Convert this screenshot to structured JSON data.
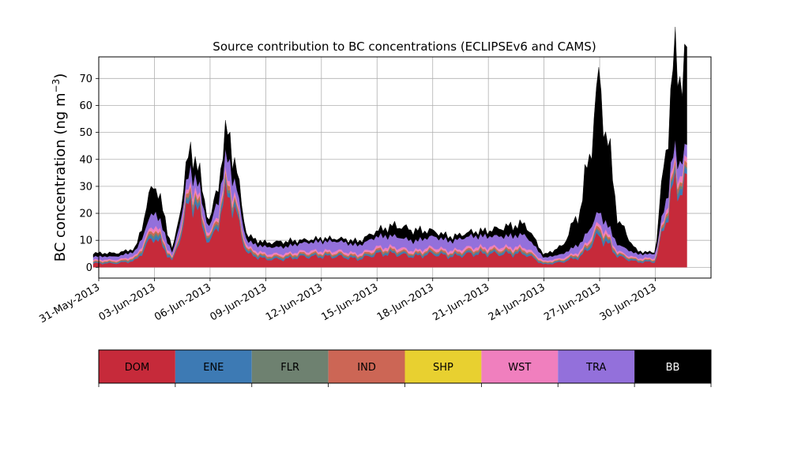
{
  "chart_data": {
    "type": "area",
    "stacked": true,
    "title": "Source contribution to BC concentrations (ECLIPSEv6 and CAMS)",
    "ylabel": "BC concentration (ng m",
    "ylabel_sup": "−3",
    "ylabel_close": ")",
    "xlabel": "",
    "grid": true,
    "x_dates": [
      "2013-06-01",
      "2013-06-02",
      "2013-06-03",
      "2013-06-04",
      "2013-06-05",
      "2013-06-06",
      "2013-06-07",
      "2013-06-08",
      "2013-06-09",
      "2013-06-10",
      "2013-06-11",
      "2013-06-12",
      "2013-06-13",
      "2013-06-14",
      "2013-06-15",
      "2013-06-16",
      "2013-06-17",
      "2013-06-18",
      "2013-06-19",
      "2013-06-20",
      "2013-06-21",
      "2013-06-22",
      "2013-06-23",
      "2013-06-24",
      "2013-06-25",
      "2013-06-26",
      "2013-06-27",
      "2013-06-28",
      "2013-06-29",
      "2013-06-30",
      "2013-07-01"
    ],
    "xlim": [
      "2013-05-31",
      "2013-07-03"
    ],
    "ylim": [
      -4,
      78
    ],
    "x_ticks": [
      "2013-05-31",
      "2013-06-03",
      "2013-06-06",
      "2013-06-09",
      "2013-06-12",
      "2013-06-15",
      "2013-06-18",
      "2013-06-21",
      "2013-06-24",
      "2013-06-27",
      "2013-06-30"
    ],
    "x_tick_labels": [
      "31-May-2013",
      "03-Jun-2013",
      "06-Jun-2013",
      "09-Jun-2013",
      "12-Jun-2013",
      "15-Jun-2013",
      "18-Jun-2013",
      "21-Jun-2013",
      "24-Jun-2013",
      "27-Jun-2013",
      "30-Jun-2013"
    ],
    "y_ticks": [
      0,
      10,
      20,
      30,
      40,
      50,
      60,
      70
    ],
    "series": [
      {
        "name": "DOM",
        "color": "#c62a3a",
        "values": [
          1.5,
          2.5,
          12,
          2,
          27,
          8,
          29,
          5,
          3,
          3,
          4,
          4,
          4,
          3,
          5,
          5,
          4,
          5,
          4,
          5,
          5,
          5,
          5,
          1,
          2,
          4,
          12,
          4,
          2,
          2,
          30
        ]
      },
      {
        "name": "ENE",
        "color": "#3d7ab4",
        "values": [
          0.3,
          0.4,
          1.5,
          0.4,
          2,
          1,
          1.8,
          0.6,
          0.5,
          0.5,
          0.5,
          0.5,
          0.5,
          0.5,
          0.6,
          0.6,
          0.5,
          0.6,
          0.5,
          0.6,
          0.6,
          0.6,
          0.6,
          0.3,
          0.4,
          0.5,
          1.5,
          0.5,
          0.4,
          0.4,
          2
        ]
      },
      {
        "name": "FLR",
        "color": "#6e8170",
        "values": [
          0.2,
          0.3,
          0.8,
          0.2,
          1,
          0.5,
          1,
          0.4,
          0.3,
          0.3,
          0.3,
          0.3,
          0.3,
          0.3,
          0.4,
          0.4,
          0.3,
          0.4,
          0.3,
          0.4,
          0.4,
          0.4,
          0.4,
          0.2,
          0.2,
          0.3,
          0.7,
          0.3,
          0.2,
          0.2,
          1
        ]
      },
      {
        "name": "IND",
        "color": "#cc6655",
        "values": [
          0.3,
          0.4,
          1,
          0.3,
          1.5,
          0.7,
          1.5,
          0.6,
          0.5,
          0.5,
          0.5,
          0.5,
          0.5,
          0.5,
          0.6,
          0.6,
          0.5,
          0.6,
          0.5,
          0.6,
          0.6,
          0.6,
          0.6,
          0.3,
          0.3,
          0.5,
          1,
          0.4,
          0.3,
          0.3,
          1.5
        ]
      },
      {
        "name": "SHP",
        "color": "#e8d030",
        "values": [
          0.05,
          0.05,
          0.1,
          0.05,
          0.1,
          0.05,
          0.1,
          0.05,
          0.05,
          0.05,
          0.05,
          0.05,
          0.05,
          0.05,
          0.05,
          0.05,
          0.05,
          0.05,
          0.05,
          0.05,
          0.05,
          0.05,
          0.05,
          0.05,
          0.05,
          0.05,
          0.1,
          0.05,
          0.05,
          0.05,
          0.1
        ]
      },
      {
        "name": "WST",
        "color": "#f07fbe",
        "values": [
          0.5,
          0.6,
          1.5,
          0.5,
          2,
          0.8,
          2,
          0.8,
          0.7,
          0.7,
          0.7,
          0.8,
          0.8,
          0.7,
          0.9,
          0.9,
          0.8,
          0.9,
          0.8,
          0.9,
          0.9,
          0.9,
          0.9,
          0.5,
          0.5,
          0.8,
          1.5,
          0.6,
          0.5,
          0.5,
          2
        ]
      },
      {
        "name": "TRA",
        "color": "#9370db",
        "values": [
          1.2,
          1.8,
          5,
          1.5,
          5,
          3,
          7,
          2,
          2.5,
          2.5,
          3,
          3.5,
          3.5,
          3,
          4,
          4,
          3.5,
          4,
          3.5,
          4,
          4,
          4,
          4.5,
          1.2,
          1.5,
          3,
          4,
          2.5,
          1.5,
          1.5,
          5
        ]
      },
      {
        "name": "BB",
        "color": "#000000",
        "values": [
          1.2,
          1,
          11,
          1,
          8,
          2,
          10,
          2,
          1.5,
          2,
          1,
          1,
          1,
          1.5,
          2,
          4,
          4,
          2,
          1.5,
          1.5,
          2,
          3.5,
          4,
          1,
          3,
          13,
          48,
          9,
          1,
          0.5,
          33
        ]
      }
    ],
    "legend": {
      "placement": "bottom (separate colorbar)",
      "items": [
        {
          "label": "DOM",
          "color": "#c62a3a",
          "text_color": "#000000"
        },
        {
          "label": "ENE",
          "color": "#3d7ab4",
          "text_color": "#000000"
        },
        {
          "label": "FLR",
          "color": "#6e8170",
          "text_color": "#000000"
        },
        {
          "label": "IND",
          "color": "#cc6655",
          "text_color": "#000000"
        },
        {
          "label": "SHP",
          "color": "#e8d030",
          "text_color": "#000000"
        },
        {
          "label": "WST",
          "color": "#f07fbe",
          "text_color": "#000000"
        },
        {
          "label": "TRA",
          "color": "#9370db",
          "text_color": "#000000"
        },
        {
          "label": "BB",
          "color": "#000000",
          "text_color": "#ffffff"
        }
      ]
    }
  }
}
